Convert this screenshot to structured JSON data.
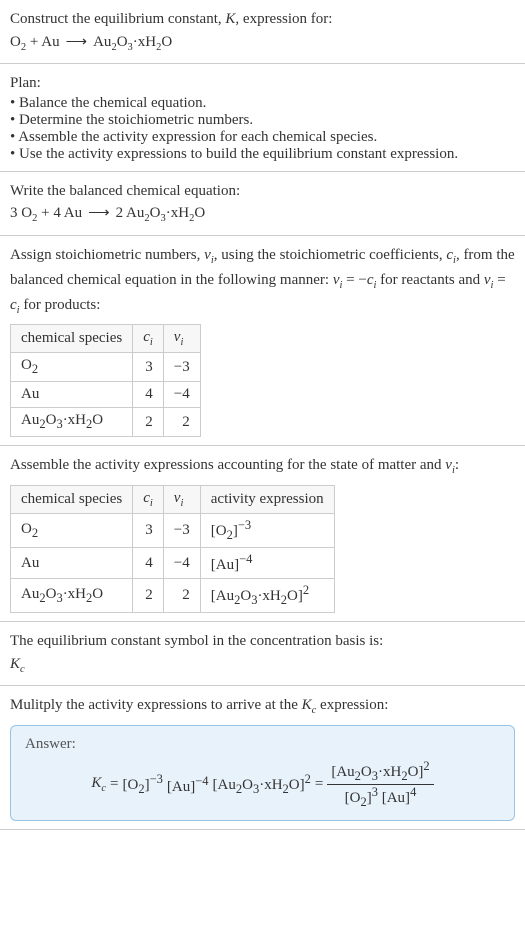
{
  "title_prefix": "Construct the equilibrium constant, ",
  "title_K": "K",
  "title_suffix": ", expression for:",
  "eq_unbalanced_lhs": "O",
  "eq_unbalanced": {
    "r1": "O",
    "r1_sub": "2",
    "plus": " + ",
    "r2": "Au",
    "arrow": "⟶",
    "p1": "Au",
    "p1_sub": "2",
    "p1_mid": "O",
    "p1_sub2": "3",
    "p1_tail": "·xH",
    "p1_sub3": "2",
    "p1_end": "O"
  },
  "plan_label": "Plan:",
  "plan_items": [
    "Balance the chemical equation.",
    "Determine the stoichiometric numbers.",
    "Assemble the activity expression for each chemical species.",
    "Use the activity expressions to build the equilibrium constant expression."
  ],
  "balanced_label": "Write the balanced chemical equation:",
  "balanced": {
    "c1": "3 ",
    "r1": "O",
    "r1_sub": "2",
    "plus": " + ",
    "c2": "4 ",
    "r2": "Au",
    "arrow": "⟶",
    "c3": "2 ",
    "p1": "Au",
    "p1_sub": "2",
    "p1_mid": "O",
    "p1_sub2": "3",
    "p1_tail": "·xH",
    "p1_sub3": "2",
    "p1_end": "O"
  },
  "assign_text_1": "Assign stoichiometric numbers, ",
  "nu_i": "ν",
  "nu_i_sub": "i",
  "assign_text_2": ", using the stoichiometric coefficients, ",
  "c_i": "c",
  "c_i_sub": "i",
  "assign_text_3": ", from the balanced chemical equation in the following manner: ",
  "relation_reactants": " = −",
  "assign_text_4": " for reactants and ",
  "relation_products": " = ",
  "assign_text_5": " for products:",
  "table1": {
    "headers": {
      "species": "chemical species",
      "c": "c",
      "c_sub": "i",
      "v": "ν",
      "v_sub": "i"
    },
    "rows": [
      {
        "species_html": "O<sub>2</sub>",
        "c": "3",
        "v": "−3"
      },
      {
        "species_html": "Au",
        "c": "4",
        "v": "−4"
      },
      {
        "species_html": "Au<sub>2</sub>O<sub>3</sub>·xH<sub>2</sub>O",
        "c": "2",
        "v": "2"
      }
    ]
  },
  "assemble_text_1": "Assemble the activity expressions accounting for the state of matter and ",
  "assemble_text_2": ":",
  "table2": {
    "headers": {
      "species": "chemical species",
      "c": "c",
      "c_sub": "i",
      "v": "ν",
      "v_sub": "i",
      "act": "activity expression"
    },
    "rows": [
      {
        "species_html": "O<sub>2</sub>",
        "c": "3",
        "v": "−3",
        "act_html": "[O<sub>2</sub>]<sup>−3</sup>"
      },
      {
        "species_html": "Au",
        "c": "4",
        "v": "−4",
        "act_html": "[Au]<sup>−4</sup>"
      },
      {
        "species_html": "Au<sub>2</sub>O<sub>3</sub>·xH<sub>2</sub>O",
        "c": "2",
        "v": "2",
        "act_html": "[Au<sub>2</sub>O<sub>3</sub>·xH<sub>2</sub>O]<sup>2</sup>"
      }
    ]
  },
  "kc_line1": "The equilibrium constant symbol in the concentration basis is:",
  "kc_symbol": "K",
  "kc_sub": "c",
  "multiply_text_1": "Mulitply the activity expressions to arrive at the ",
  "multiply_text_2": " expression:",
  "answer_label": "Answer:",
  "answer": {
    "lhs_K": "K",
    "lhs_sub": "c",
    "eq": " = ",
    "t1_html": "[O<sub>2</sub>]<sup>−3</sup>",
    "t2_html": "[Au]<sup>−4</sup>",
    "t3_html": "[Au<sub>2</sub>O<sub>3</sub>·xH<sub>2</sub>O]<sup>2</sup>",
    "eq2": " = ",
    "frac_num_html": "[Au<sub>2</sub>O<sub>3</sub>·xH<sub>2</sub>O]<sup>2</sup>",
    "frac_den_html": "[O<sub>2</sub>]<sup>3</sup> [Au]<sup>4</sup>"
  },
  "colors": {
    "border": "#cccccc",
    "answer_border": "#9cc3e0",
    "answer_bg": "#e8f2fb",
    "text": "#333333"
  }
}
